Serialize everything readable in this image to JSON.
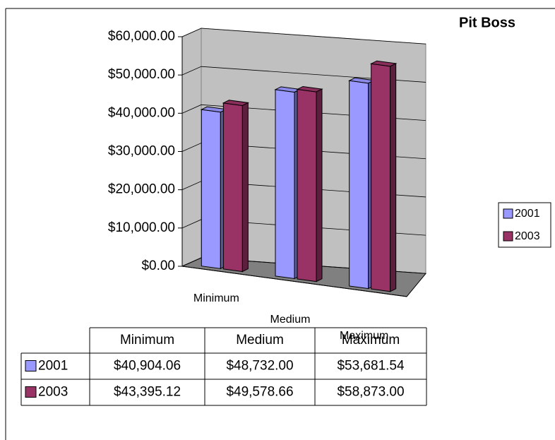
{
  "chart_data": {
    "type": "bar3d",
    "title": "Pit Boss",
    "categories": [
      "Minimum",
      "Medium",
      "Maximum"
    ],
    "series": [
      {
        "name": "2001",
        "color": "#9999ff",
        "values": [
          40904.06,
          48732.0,
          53681.54
        ],
        "value_labels": [
          "$40,904.06",
          "$48,732.00",
          "$53,681.54"
        ]
      },
      {
        "name": "2003",
        "color": "#993366",
        "values": [
          43395.12,
          49578.66,
          58873.0
        ],
        "value_labels": [
          "$43,395.12",
          "$49,578.66",
          "$58,873.00"
        ]
      }
    ],
    "ylim": [
      0,
      60000
    ],
    "yticks": [
      {
        "value": 0,
        "label": "$0.00"
      },
      {
        "value": 10000,
        "label": "$10,000.00"
      },
      {
        "value": 20000,
        "label": "$20,000.00"
      },
      {
        "value": 30000,
        "label": "$30,000.00"
      },
      {
        "value": 40000,
        "label": "$40,000.00"
      },
      {
        "value": 50000,
        "label": "$50,000.00"
      },
      {
        "value": 60000,
        "label": "$60,000.00"
      }
    ],
    "grid": true,
    "legend": "right"
  }
}
